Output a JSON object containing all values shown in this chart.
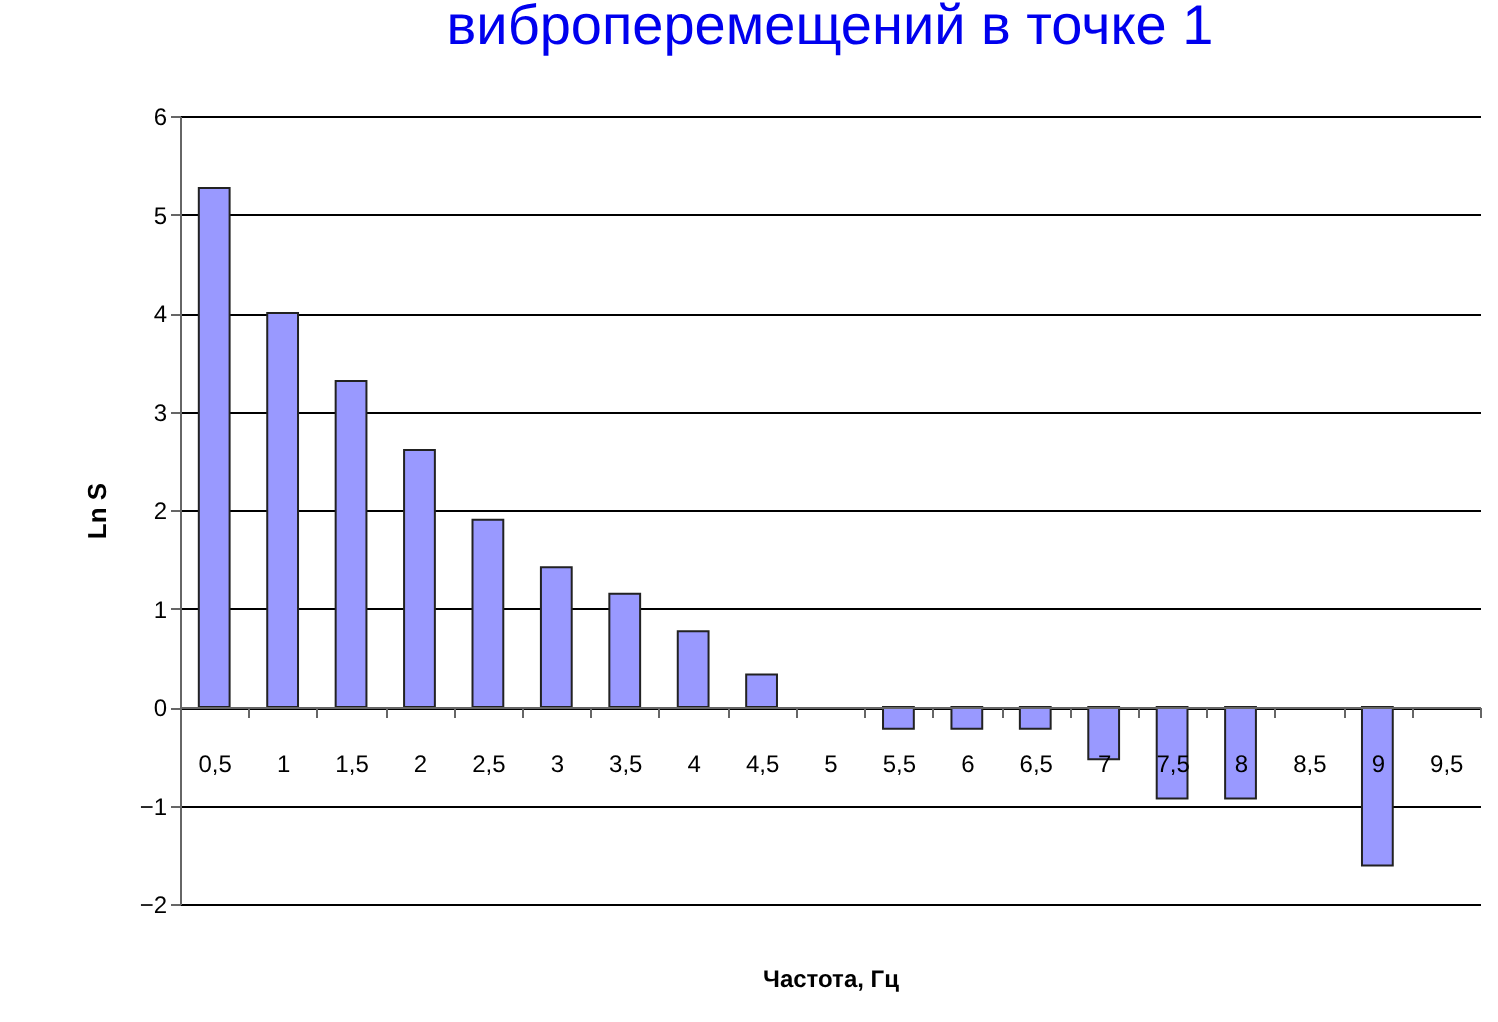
{
  "chart_data": {
    "type": "bar",
    "title": "виброперемещений в точке 1",
    "xlabel": "Частота, Гц",
    "ylabel": "Ln S",
    "categories": [
      "0,5",
      "1",
      "1,5",
      "2",
      "2,5",
      "3",
      "3,5",
      "4",
      "4,5",
      "5",
      "5,5",
      "6",
      "6,5",
      "7",
      "7,5",
      "8",
      "8,5",
      "9",
      "9,5"
    ],
    "values": [
      5.27,
      4.0,
      3.31,
      2.61,
      1.9,
      1.42,
      1.15,
      0.77,
      0.33,
      null,
      -0.22,
      -0.22,
      -0.22,
      -0.53,
      -0.93,
      -0.93,
      null,
      -1.61,
      null
    ],
    "color": "#9999ff",
    "ylim": [
      -2,
      6
    ],
    "yticks": [
      -2,
      -1,
      0,
      1,
      2,
      3,
      4,
      5,
      6
    ],
    "grid": "y"
  }
}
